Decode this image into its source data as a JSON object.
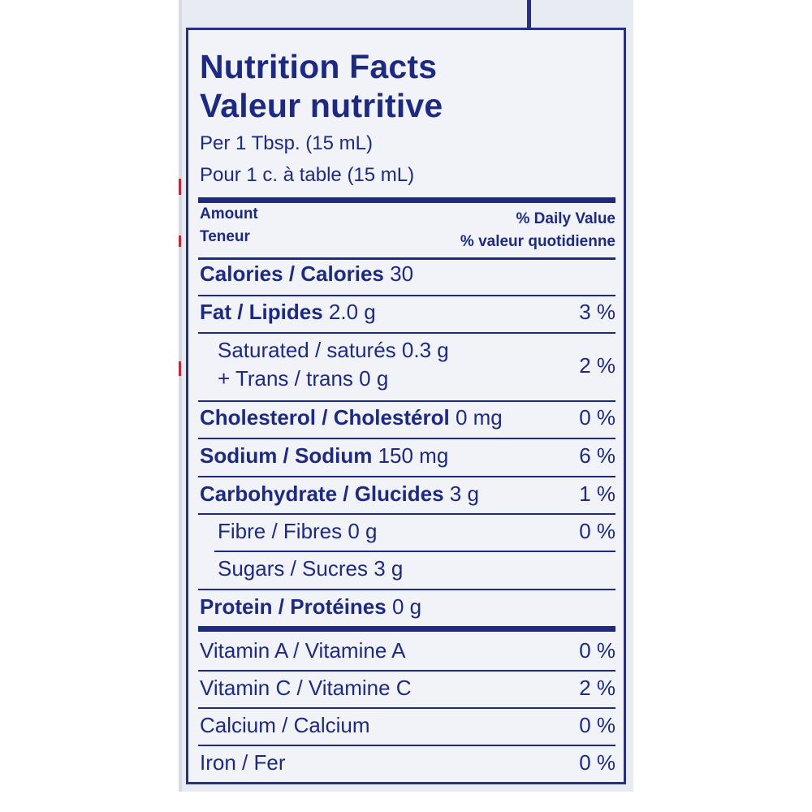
{
  "label": {
    "title_en": "Nutrition Facts",
    "title_fr": "Valeur nutritive",
    "serving_en": "Per 1 Tbsp. (15 mL)",
    "serving_fr": "Pour 1 c. à table (15 mL)",
    "amount_en": "Amount",
    "amount_fr": "Teneur",
    "dv_en": "% Daily Value",
    "dv_fr": "% valeur quotidienne",
    "calories": {
      "name": "Calories / Calories",
      "amount": "30"
    },
    "fat": {
      "name": "Fat / Lipides",
      "amount": "2.0 g",
      "dv": "3 %"
    },
    "saturated": {
      "line1": "Saturated / saturés 0.3 g",
      "line2": "+ Trans / trans 0 g",
      "dv": "2 %"
    },
    "cholesterol": {
      "name": "Cholesterol / Cholestérol",
      "amount": "0 mg",
      "dv": "0 %"
    },
    "sodium": {
      "name": "Sodium / Sodium",
      "amount": "150 mg",
      "dv": "6 %"
    },
    "carbohydrate": {
      "name": "Carbohydrate / Glucides",
      "amount": "3 g",
      "dv": "1 %"
    },
    "fibre": {
      "text": "Fibre / Fibres 0 g",
      "dv": "0 %"
    },
    "sugars": {
      "text": "Sugars / Sucres 3 g"
    },
    "protein": {
      "name": "Protein / Protéines",
      "amount": "0 g"
    },
    "vitamin_a": {
      "name": "Vitamin A / Vitamine A",
      "dv": "0 %"
    },
    "vitamin_c": {
      "name": "Vitamin C / Vitamine C",
      "dv": "2 %"
    },
    "calcium": {
      "name": "Calcium / Calcium",
      "dv": "0 %"
    },
    "iron": {
      "name": "Iron / Fer",
      "dv": "0 %"
    }
  },
  "colors": {
    "ink": "#1d2a82",
    "panel": "#f2f3f8",
    "accent_red": "#c0293a"
  }
}
